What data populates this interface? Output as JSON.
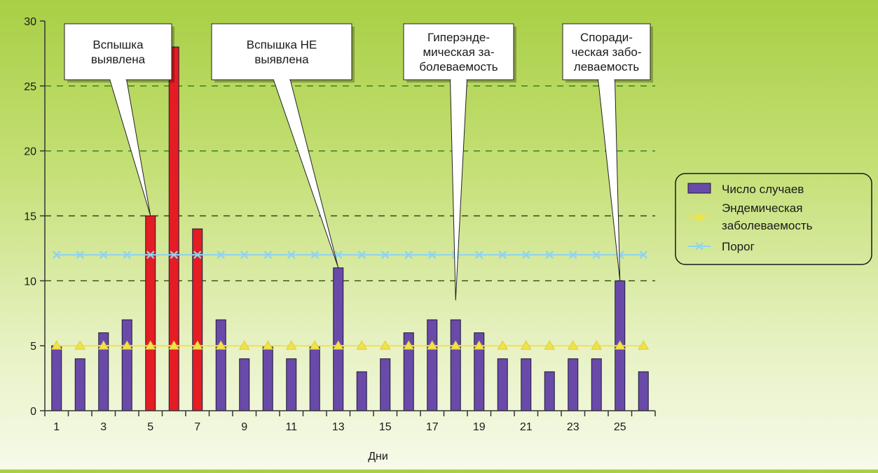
{
  "chart_data": {
    "type": "bar",
    "xlabel": "Дни",
    "ylabel": "",
    "ylim": [
      0,
      30
    ],
    "yticks": [
      0,
      5,
      10,
      15,
      20,
      25,
      30
    ],
    "x": [
      1,
      2,
      3,
      4,
      5,
      6,
      7,
      8,
      9,
      10,
      11,
      12,
      13,
      14,
      15,
      16,
      17,
      18,
      19,
      20,
      21,
      22,
      23,
      24,
      25,
      26
    ],
    "xtick_labels": [
      "1",
      "3",
      "5",
      "7",
      "9",
      "11",
      "13",
      "15",
      "17",
      "19",
      "21",
      "23",
      "25"
    ],
    "series": [
      {
        "name": "Число случаев",
        "kind": "bar",
        "color": "#6a4aa8",
        "values": [
          5,
          4,
          6,
          7,
          15,
          28,
          14,
          7,
          4,
          5,
          4,
          5,
          11,
          3,
          4,
          6,
          7,
          7,
          6,
          4,
          4,
          3,
          4,
          4,
          10,
          3
        ]
      },
      {
        "name": "Эндемическая заболеваемость",
        "kind": "line",
        "marker": "triangle",
        "color": "#f2e24a",
        "values": [
          5,
          5,
          5,
          5,
          5,
          5,
          5,
          5,
          5,
          5,
          5,
          5,
          5,
          5,
          5,
          5,
          5,
          5,
          5,
          5,
          5,
          5,
          5,
          5,
          5,
          5
        ]
      },
      {
        "name": "Порог",
        "kind": "line",
        "marker": "x",
        "color": "#8fd3ef",
        "values": [
          12,
          12,
          12,
          12,
          12,
          12,
          12,
          12,
          12,
          12,
          12,
          12,
          12,
          12,
          12,
          12,
          12,
          12,
          12,
          12,
          12,
          12,
          12,
          12,
          12,
          12
        ]
      }
    ],
    "highlight": {
      "days": [
        5,
        6,
        7
      ],
      "color": "#e41c23"
    },
    "gridlines": [
      {
        "value": 10,
        "color": "#2e4a12"
      },
      {
        "value": 15,
        "color": "#2e4a12"
      },
      {
        "value": 20,
        "color": "#2f7a1c"
      },
      {
        "value": 25,
        "color": "#2f7a1c"
      }
    ],
    "legend_position": "right",
    "annotations": [
      {
        "lines": [
          "Вспышка",
          "выявлена"
        ],
        "target_day": 5,
        "target_value": 15
      },
      {
        "lines": [
          "Вспышка НЕ",
          "выявлена"
        ],
        "target_day": 13,
        "target_value": 11
      },
      {
        "lines": [
          "Гиперэнде-",
          "мическая за-",
          "болеваемость"
        ],
        "target_day": 18,
        "target_value": 8.5
      },
      {
        "lines": [
          "Споради-",
          "ческая забо-",
          "леваемость"
        ],
        "target_day": 25,
        "target_value": 10
      }
    ]
  }
}
